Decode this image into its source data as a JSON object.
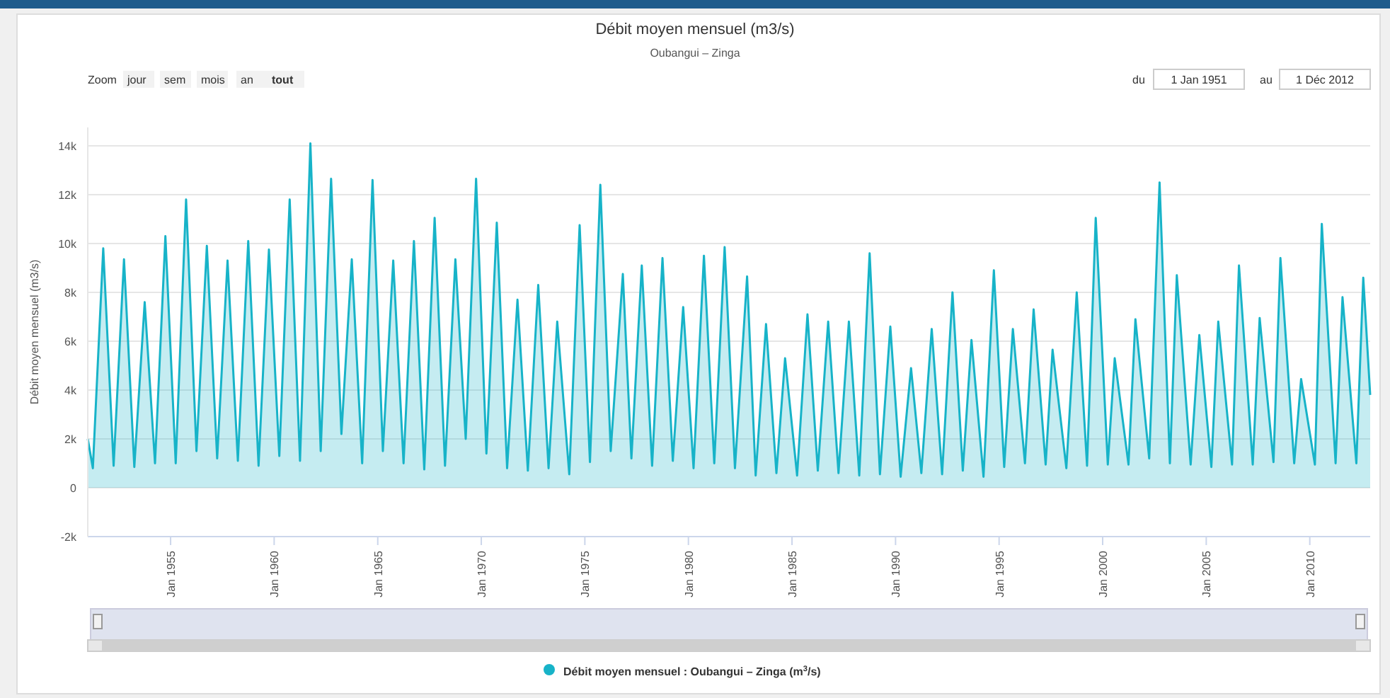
{
  "chart_data": {
    "type": "area",
    "title": "Débit moyen mensuel (m3/s)",
    "subtitle": "Oubangui – Zinga",
    "ylabel": "Débit moyen mensuel (m3/s)",
    "annotations": [
      "Zoom",
      "jour",
      "sem",
      "mois",
      "an",
      "tout",
      "du",
      "1 Jan 1951",
      "au",
      "1 Déc 2012"
    ],
    "xlim": [
      "1951-01",
      "2012-12"
    ],
    "xticks": [
      {
        "value": "1955-01",
        "label": "Jan 1955"
      },
      {
        "value": "1960-01",
        "label": "Jan 1960"
      },
      {
        "value": "1965-01",
        "label": "Jan 1965"
      },
      {
        "value": "1970-01",
        "label": "Jan 1970"
      },
      {
        "value": "1975-01",
        "label": "Jan 1975"
      },
      {
        "value": "1980-01",
        "label": "Jan 1980"
      },
      {
        "value": "1985-01",
        "label": "Jan 1985"
      },
      {
        "value": "1990-01",
        "label": "Jan 1990"
      },
      {
        "value": "1995-01",
        "label": "Jan 1995"
      },
      {
        "value": "2000-01",
        "label": "Jan 2000"
      },
      {
        "value": "2005-01",
        "label": "Jan 2005"
      },
      {
        "value": "2010-01",
        "label": "Jan 2010"
      }
    ],
    "ylim": [
      -2000,
      14750
    ],
    "yticks": [
      {
        "value": -2000,
        "label": "-2k"
      },
      {
        "value": 0,
        "label": "0"
      },
      {
        "value": 2000,
        "label": "2k"
      },
      {
        "value": 4000,
        "label": "4k"
      },
      {
        "value": 6000,
        "label": "6k"
      },
      {
        "value": 8000,
        "label": "8k"
      },
      {
        "value": 10000,
        "label": "10k"
      },
      {
        "value": 12000,
        "label": "12k"
      },
      {
        "value": 14000,
        "label": "14k"
      }
    ],
    "grid": "y",
    "legend": "bottom",
    "marker": "none",
    "line_style": "solid",
    "series": [
      {
        "name": "Débit moyen mensuel : Oubangui – Zinga (m$^{3}$/s)",
        "color": "#17b3c8",
        "x": [
          "1951-01",
          "1951-04",
          "1951-10",
          "1952-04",
          "1952-10",
          "1953-04",
          "1953-10",
          "1954-04",
          "1954-10",
          "1955-04",
          "1955-10",
          "1956-04",
          "1956-10",
          "1957-04",
          "1957-10",
          "1958-04",
          "1958-10",
          "1959-04",
          "1959-10",
          "1960-04",
          "1960-10",
          "1961-04",
          "1961-10",
          "1962-04",
          "1962-10",
          "1963-04",
          "1963-10",
          "1964-04",
          "1964-10",
          "1965-04",
          "1965-10",
          "1966-04",
          "1966-10",
          "1967-04",
          "1967-10",
          "1968-04",
          "1968-10",
          "1969-04",
          "1969-10",
          "1970-04",
          "1970-10",
          "1971-04",
          "1971-10",
          "1972-04",
          "1972-10",
          "1973-04",
          "1973-09",
          "1974-04",
          "1974-10",
          "1975-04",
          "1975-10",
          "1976-04",
          "1976-11",
          "1977-04",
          "1977-10",
          "1978-04",
          "1978-10",
          "1979-04",
          "1979-10",
          "1980-04",
          "1980-10",
          "1981-04",
          "1981-10",
          "1982-04",
          "1982-11",
          "1983-04",
          "1983-10",
          "1984-04",
          "1984-09",
          "1985-04",
          "1985-10",
          "1986-04",
          "1986-10",
          "1987-04",
          "1987-10",
          "1988-04",
          "1988-10",
          "1989-04",
          "1989-10",
          "1990-04",
          "1990-10",
          "1991-04",
          "1991-10",
          "1992-04",
          "1992-10",
          "1993-04",
          "1993-09",
          "1994-04",
          "1994-10",
          "1995-04",
          "1995-09",
          "1996-04",
          "1996-09",
          "1997-04",
          "1997-08",
          "1998-04",
          "1998-10",
          "1999-04",
          "1999-09",
          "2000-04",
          "2000-08",
          "2001-04",
          "2001-08",
          "2002-04",
          "2002-10",
          "2003-04",
          "2003-08",
          "2004-04",
          "2004-09",
          "2005-04",
          "2005-08",
          "2006-04",
          "2006-08",
          "2007-04",
          "2007-08",
          "2008-04",
          "2008-08",
          "2009-04",
          "2009-08",
          "2010-04",
          "2010-08",
          "2011-04",
          "2011-08",
          "2012-04",
          "2012-08",
          "2012-12"
        ],
        "values": [
          2000,
          800,
          9800,
          900,
          9350,
          850,
          7600,
          1000,
          10300,
          1000,
          11800,
          1500,
          9900,
          1200,
          9300,
          1100,
          10100,
          900,
          9750,
          1300,
          11800,
          1100,
          14100,
          1500,
          12650,
          2200,
          9350,
          1000,
          12600,
          1500,
          9300,
          1000,
          10100,
          750,
          11050,
          900,
          9350,
          2000,
          12650,
          1400,
          10850,
          800,
          7700,
          700,
          8300,
          800,
          6800,
          550,
          10750,
          1050,
          12400,
          1500,
          8750,
          1200,
          9100,
          900,
          9400,
          1100,
          7400,
          800,
          9500,
          1000,
          9850,
          800,
          8650,
          500,
          6700,
          600,
          5300,
          500,
          7100,
          700,
          6800,
          600,
          6800,
          500,
          9600,
          550,
          6600,
          450,
          4900,
          600,
          6500,
          550,
          8000,
          700,
          6050,
          450,
          8900,
          850,
          6500,
          1000,
          7300,
          950,
          5650,
          800,
          8000,
          900,
          11050,
          950,
          5300,
          950,
          6900,
          1200,
          12500,
          1000,
          8700,
          950,
          6250,
          850,
          6800,
          950,
          9100,
          950,
          6950,
          1050,
          9400,
          1000,
          4450,
          950,
          10800,
          1000,
          7800,
          1000,
          8600,
          3800
        ]
      }
    ]
  }
}
